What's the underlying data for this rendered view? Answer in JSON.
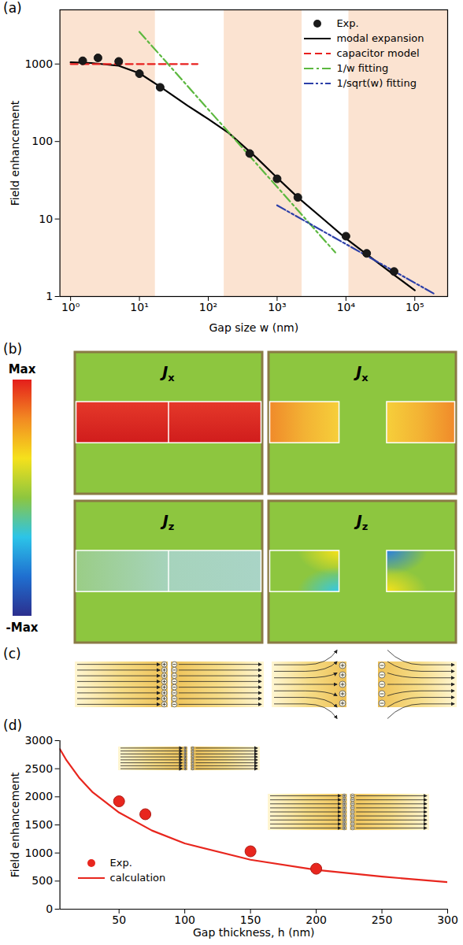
{
  "chart_data": [
    {
      "type": "line",
      "title": "(a)",
      "x_label": "Gap size w (nm)",
      "y_label": "Field enhancement",
      "log": true,
      "grid": false,
      "legend": "upper right",
      "xlim": [
        0.7,
        300000
      ],
      "xticks": [
        {
          "value": 1,
          "label": "10⁰"
        },
        {
          "value": 10,
          "label": "10¹"
        },
        {
          "value": 100,
          "label": "10²"
        },
        {
          "value": 1000,
          "label": "10³"
        },
        {
          "value": 10000,
          "label": "10⁴"
        },
        {
          "value": 100000,
          "label": "10⁵"
        }
      ],
      "ylim": [
        1,
        5000
      ],
      "yticks": [
        1,
        10,
        100,
        1000
      ],
      "bands": {
        "color": "#fbe3d1",
        "ranges": [
          [
            0.7,
            17
          ],
          [
            170,
            2300
          ],
          [
            11000,
            300000
          ]
        ]
      },
      "series": [
        {
          "name": "Exp.",
          "type": "scatter",
          "marker": "circle",
          "color": "#1a1a1a",
          "x": [
            1.5,
            2.5,
            5,
            10,
            20,
            400,
            1000,
            2000,
            10000,
            20000,
            50000
          ],
          "values": [
            1100,
            1200,
            1080,
            750,
            500,
            70,
            33,
            19,
            6,
            3.6,
            2.1
          ]
        },
        {
          "name": "modal expansion",
          "type": "line",
          "line_style": "solid",
          "color": "#000000",
          "x": [
            1,
            2,
            5,
            10,
            20,
            50,
            100,
            200,
            500,
            1000,
            2000,
            5000,
            10000,
            20000,
            50000,
            100000
          ],
          "values": [
            1050,
            1030,
            950,
            760,
            510,
            290,
            195,
            128,
            62,
            34,
            19,
            9.5,
            5.6,
            3.5,
            1.9,
            1.2
          ]
        },
        {
          "name": "capacitor model",
          "type": "line",
          "line_style": "dashed",
          "color": "#e8201e",
          "x": [
            1,
            70
          ],
          "values": [
            1000,
            1000
          ]
        },
        {
          "name": "1/w fitting",
          "type": "line",
          "line_style": "dashdot",
          "color": "#5cb83f",
          "x": [
            10,
            7000
          ],
          "values": [
            2600,
            3.7
          ]
        },
        {
          "name": "1/sqrt(w) fitting",
          "type": "line",
          "line_style": "dashdotdot",
          "color": "#2c3fa8",
          "x": [
            1000,
            200000
          ],
          "values": [
            15,
            1.06
          ]
        }
      ]
    },
    {
      "type": "line",
      "title": "(d)",
      "x_label": "Gap thickness, h (nm)",
      "y_label": "Field enhancement",
      "grid": false,
      "legend": "lower left",
      "xlim": [
        5,
        300
      ],
      "xticks": [
        50,
        100,
        150,
        200,
        250,
        300
      ],
      "ylim": [
        0,
        3000
      ],
      "yticks": [
        0,
        500,
        1000,
        1500,
        2000,
        2500,
        3000
      ],
      "series": [
        {
          "name": "Exp.",
          "type": "scatter",
          "marker": "circle",
          "color": "#e8261e",
          "x": [
            50,
            70,
            150,
            200
          ],
          "values": [
            1920,
            1690,
            1030,
            720
          ]
        },
        {
          "name": "calculation",
          "type": "line",
          "line_style": "solid",
          "color": "#e8261e",
          "x": [
            5,
            10,
            20,
            30,
            50,
            75,
            100,
            150,
            200,
            250,
            300
          ],
          "values": [
            2850,
            2650,
            2330,
            2080,
            1720,
            1400,
            1170,
            880,
            700,
            580,
            480
          ]
        }
      ]
    }
  ],
  "diagrams": {
    "b": {
      "label": "(b)",
      "colorbar": {
        "top_label": "Max",
        "bottom_label": "-Max"
      },
      "maps": [
        {
          "label": "Jx"
        },
        {
          "label": "Jx"
        },
        {
          "label": "Jz"
        },
        {
          "label": "Jz"
        }
      ]
    },
    "c": {
      "label": "(c)"
    }
  }
}
